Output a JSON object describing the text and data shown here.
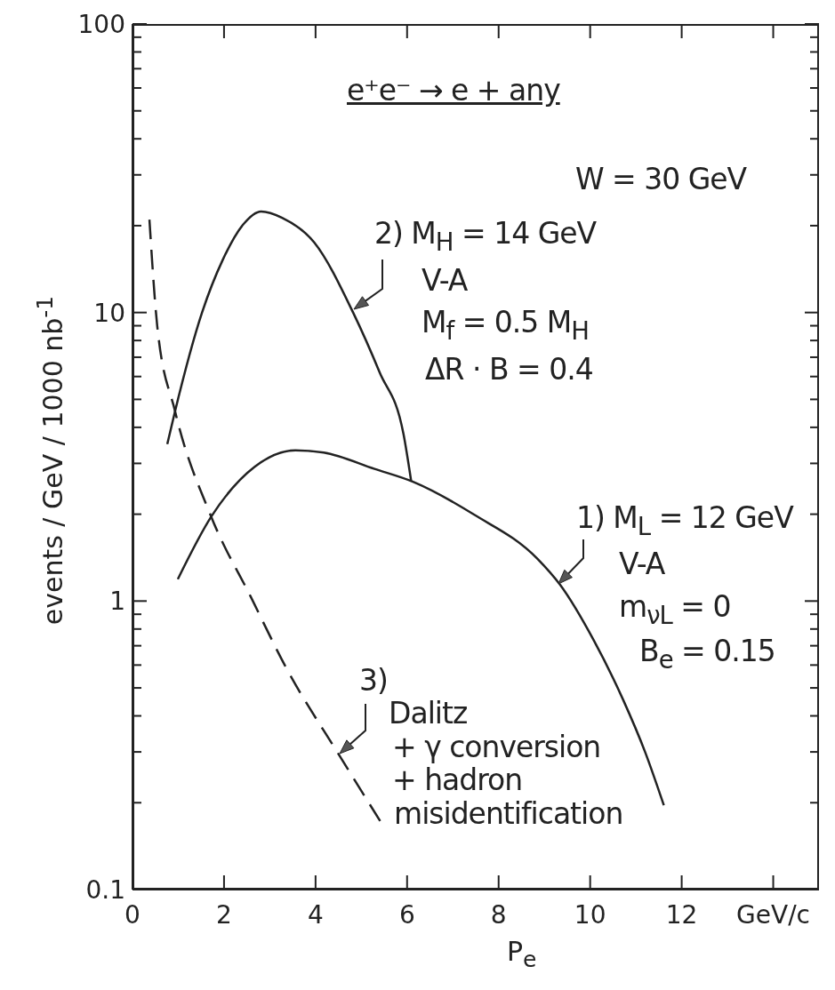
{
  "chart_data": {
    "type": "line",
    "title": "e⁺e⁻ → e + any",
    "xlabel": "P$_{e}$",
    "ylabel": "events / GeV / 1000 nb$^{-1}$",
    "log": "y",
    "marker": "none",
    "xlim": [
      0,
      15
    ],
    "xticks": [
      0,
      2,
      4,
      6,
      8,
      10,
      12,
      {
        "value": 14,
        "label": "GeV/c"
      }
    ],
    "ylim": [
      0.1,
      100
    ],
    "yticks": [
      0.1,
      {
        "value": 0.2,
        "label": null
      },
      {
        "value": 0.3,
        "label": null
      },
      {
        "value": 0.4,
        "label": null
      },
      {
        "value": 0.5,
        "label": null
      },
      {
        "value": 0.6,
        "label": null
      },
      {
        "value": 0.7,
        "label": null
      },
      {
        "value": 0.8,
        "label": null
      },
      {
        "value": 0.9,
        "label": null
      },
      1,
      {
        "value": 2,
        "label": null
      },
      {
        "value": 3,
        "label": null
      },
      {
        "value": 4,
        "label": null
      },
      {
        "value": 5,
        "label": null
      },
      {
        "value": 6,
        "label": null
      },
      {
        "value": 7,
        "label": null
      },
      {
        "value": 8,
        "label": null
      },
      {
        "value": 9,
        "label": null
      },
      10,
      {
        "value": 20,
        "label": null
      },
      {
        "value": 30,
        "label": null
      },
      {
        "value": 40,
        "label": null
      },
      {
        "value": 50,
        "label": null
      },
      {
        "value": 60,
        "label": null
      },
      {
        "value": 70,
        "label": null
      },
      {
        "value": 80,
        "label": null
      },
      {
        "value": 90,
        "label": null
      },
      100
    ],
    "series": [
      {
        "name": "1) M$_{L}$ = 12 GeV",
        "color": "#222222",
        "line_style": "solid",
        "x": [
          0.99,
          1.72,
          2.67,
          3.56,
          4.18,
          5.29,
          6.13,
          7.47,
          8.85,
          9.34,
          10.08,
          10.72,
          11.2,
          11.61
        ],
        "values": [
          1.19,
          1.96,
          2.92,
          3.33,
          3.27,
          2.87,
          2.59,
          1.99,
          1.4,
          1.14,
          0.73,
          0.455,
          0.3,
          0.196
        ]
      },
      {
        "name": "2) M$_{H}$ = 14 GeV",
        "color": "#222222",
        "line_style": "solid",
        "x": [
          0.76,
          0.93,
          1.52,
          1.97,
          2.42,
          2.81,
          3.27,
          3.97,
          4.82,
          5.4,
          5.92,
          6.09
        ],
        "values": [
          3.5,
          4.55,
          10,
          15.2,
          20.2,
          22.4,
          21.3,
          17.5,
          10,
          6.2,
          3.8,
          2.6
        ]
      },
      {
        "name": "3)",
        "color": "#222222",
        "line_style": "dashed",
        "x": [
          0.37,
          0.54,
          0.93,
          1.72,
          2.59,
          3.35,
          4.53,
          5.45
        ],
        "values": [
          21,
          9,
          4.55,
          1.96,
          1.03,
          0.59,
          0.29,
          0.169
        ]
      }
    ],
    "annotations": [
      "W = 30 GeV",
      "V-A",
      "M$_{f}$ = 0.5 M$_{H}$",
      "ΔR · B = 0.4",
      "V-A",
      "m$_{νL}$ = 0",
      "B$_{e}$ = 0.15",
      "Dalitz",
      "+ γ conversion",
      "+ hadron",
      "misidentification"
    ]
  }
}
